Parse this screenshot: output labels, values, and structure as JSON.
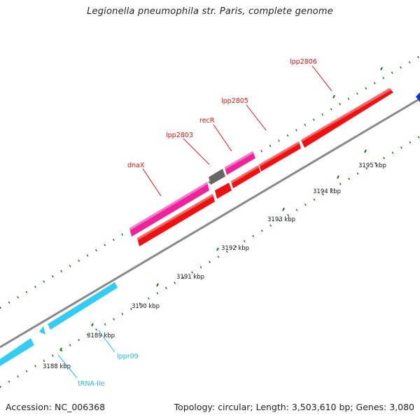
{
  "title": "Legionella pneumophila str. Paris, complete genome",
  "footer": {
    "accession": "Accession: NC_006368",
    "stats": "Topology: circular; Length: 3,503,610 bp; Genes: 3,080"
  },
  "ticks": [
    "3188 kbp",
    "3189 kbp",
    "3190 kbp",
    "3191 kbp",
    "3192 kbp",
    "3193 kbp",
    "3194 kbp",
    "3195 kbp"
  ],
  "gene_labels": {
    "lpp2806": "lpp2806",
    "lpp2805": "lpp2805",
    "recR": "recR",
    "lpp2803": "lpp2803",
    "dnaX": "dnaX",
    "lppr09": "lppr09",
    "trna_ile": "tRNA-Ile"
  },
  "colors": {
    "cds": "#ee1111",
    "cds_highlight": "#ee2299",
    "pseudo": "#666666",
    "rna": "#33ccf2",
    "backbone": "#888888",
    "gc_ticks": "#1a7a1a",
    "other_gene": "#1133cc"
  }
}
